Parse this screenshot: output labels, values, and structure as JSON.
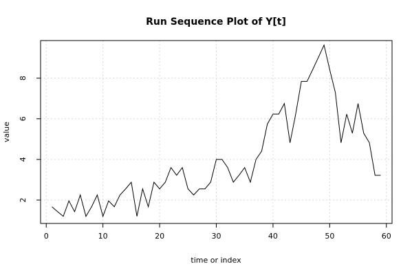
{
  "chart_data": {
    "type": "line",
    "title": "Run Sequence Plot of Y[t]",
    "xlabel": "time or index",
    "ylabel": "value",
    "xlim": [
      -1,
      61
    ],
    "ylim": [
      0.85,
      9.85
    ],
    "xticks": [
      0,
      10,
      20,
      30,
      40,
      50,
      60
    ],
    "yticks": [
      2,
      4,
      6,
      8
    ],
    "grid": true,
    "series": [
      {
        "x": [
          1,
          2,
          3,
          4,
          5,
          6,
          7,
          8,
          9,
          10,
          11,
          12,
          13,
          14,
          15,
          16,
          17,
          18,
          19,
          20,
          21,
          22,
          23,
          24,
          25,
          26,
          27,
          28,
          29,
          30,
          31,
          32,
          33,
          34,
          35,
          36,
          37,
          38,
          39,
          40,
          41,
          42,
          43,
          44,
          45,
          46,
          47,
          48,
          49,
          50,
          51,
          52,
          53,
          54,
          55,
          56,
          57,
          58,
          59
        ],
        "values": [
          1.67,
          1.43,
          1.2,
          1.96,
          1.43,
          2.25,
          1.2,
          1.67,
          2.25,
          1.2,
          1.96,
          1.67,
          2.25,
          2.55,
          2.88,
          1.2,
          2.55,
          1.67,
          2.88,
          2.55,
          2.88,
          3.6,
          3.22,
          3.6,
          2.55,
          2.25,
          2.55,
          2.55,
          2.88,
          4.0,
          4.0,
          3.6,
          2.88,
          3.22,
          3.6,
          2.88,
          4.0,
          4.41,
          5.74,
          6.23,
          6.23,
          6.75,
          4.82,
          6.23,
          7.84,
          7.84,
          8.42,
          9.02,
          9.63,
          8.42,
          7.29,
          4.82,
          6.23,
          5.29,
          6.75,
          5.29,
          4.82,
          3.22,
          3.22
        ]
      }
    ]
  }
}
